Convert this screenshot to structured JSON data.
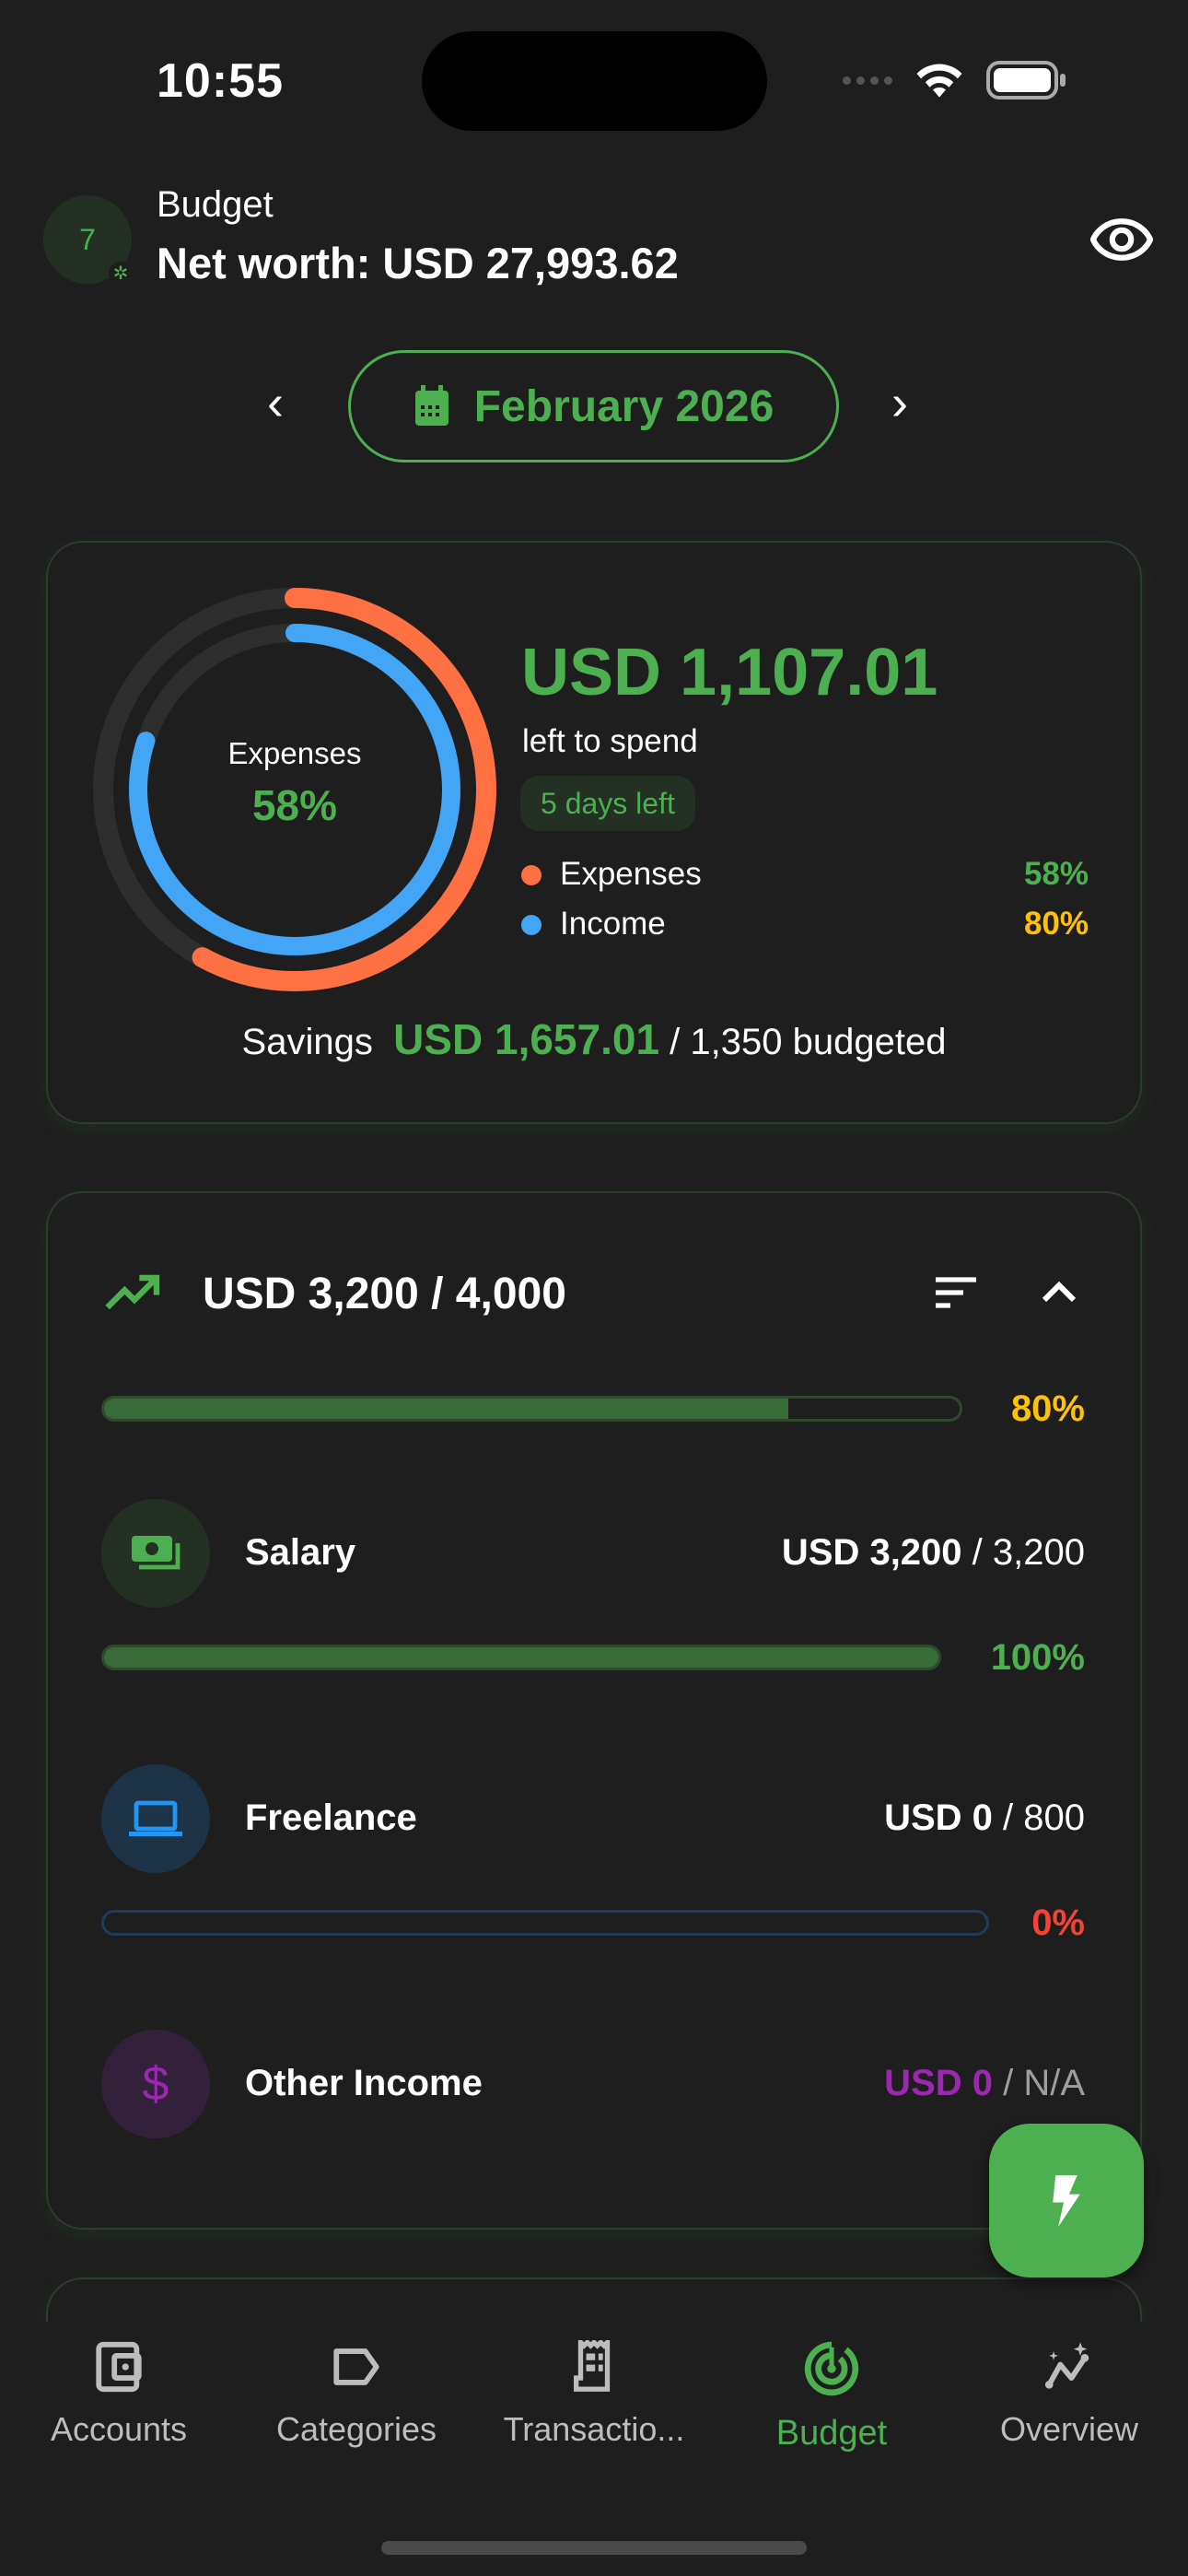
{
  "status_bar": {
    "time": "10:55"
  },
  "header": {
    "avatar_number": "7",
    "title": "Budget",
    "net_worth": "Net worth: USD 27,993.62"
  },
  "month_selector": {
    "label": "February 2026"
  },
  "summary": {
    "ring_label": "Expenses",
    "ring_value": "58%",
    "left_amount": "USD 1,107.01",
    "left_label": "left to spend",
    "days_left": "5 days left",
    "legend": [
      {
        "label": "Expenses",
        "value": "58%",
        "color": "#ff7043",
        "progress": 58
      },
      {
        "label": "Income",
        "value": "80%",
        "color": "#42a5f5",
        "progress": 80
      }
    ],
    "savings_label": "Savings",
    "savings_amount": "USD 1,657.01",
    "savings_budget": "/ 1,350 budgeted"
  },
  "income": {
    "total": "USD 3,200 / 4,000",
    "progress_pct": "80%",
    "progress": 80,
    "items": [
      {
        "name": "Salary",
        "amount": "USD 3,200",
        "budget": "/ 3,200",
        "pct": "100%",
        "progress": 100,
        "icon": "money-icon",
        "color": "#4caf50"
      },
      {
        "name": "Freelance",
        "amount": "USD 0",
        "budget": "/ 800",
        "pct": "0%",
        "progress": 0,
        "icon": "laptop-icon",
        "color": "#2196f3"
      },
      {
        "name": "Other Income",
        "amount": "USD 0",
        "budget": "/ N/A",
        "icon": "dollar-icon",
        "color": "#9c27b0"
      }
    ]
  },
  "nav": [
    {
      "label": "Accounts"
    },
    {
      "label": "Categories"
    },
    {
      "label": "Transactio..."
    },
    {
      "label": "Budget",
      "active": true
    },
    {
      "label": "Overview"
    }
  ],
  "colors": {
    "accent": "#4caf50",
    "expenses": "#ff7043",
    "income": "#42a5f5",
    "warning": "#ffc107",
    "danger": "#f44336"
  }
}
